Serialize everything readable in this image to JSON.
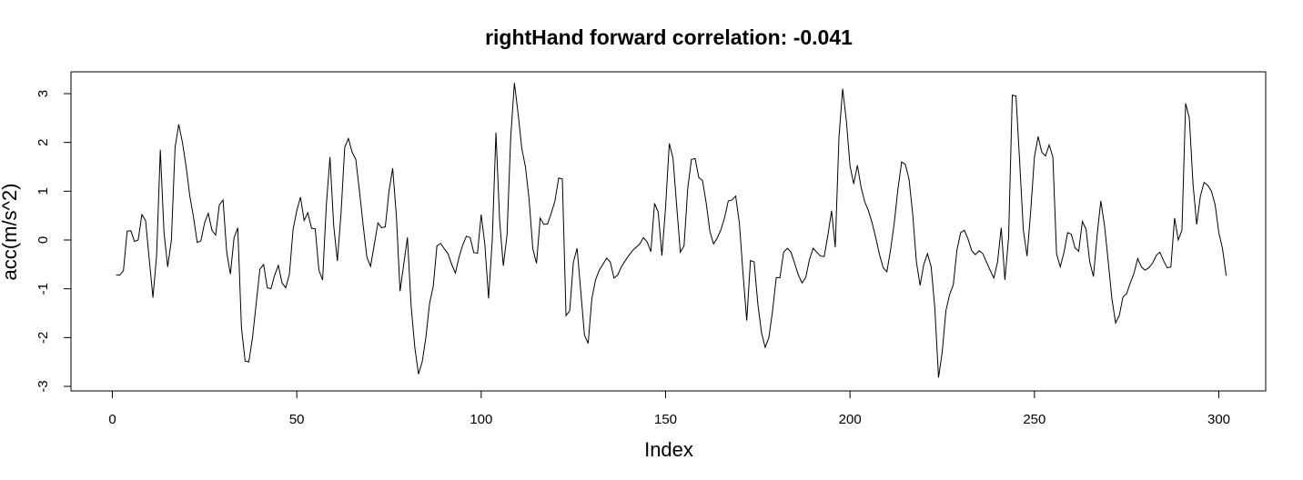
{
  "chart_data": {
    "type": "line",
    "title": "rightHand forward correlation: -0.041",
    "xlabel": "Index",
    "ylabel": "acc(m/s^2)",
    "xlim": [
      1,
      301
    ],
    "ylim": [
      -3,
      3.2
    ],
    "xticks": [
      0,
      50,
      100,
      150,
      200,
      250,
      300
    ],
    "yticks": [
      -3,
      -2,
      -1,
      0,
      1,
      2,
      3
    ],
    "grid": false,
    "line_color": "#000000",
    "series": [
      {
        "values": [
          -0.72,
          -0.72,
          -0.63,
          0.18,
          0.19,
          -0.03,
          0.0,
          0.52,
          0.4,
          -0.4,
          -1.18,
          -0.31,
          1.85,
          0.15,
          -0.55,
          0.0,
          1.9,
          2.37,
          2.0,
          1.5,
          0.9,
          0.47,
          -0.05,
          -0.02,
          0.35,
          0.55,
          0.2,
          0.1,
          0.72,
          0.82,
          -0.25,
          -0.7,
          0.05,
          0.25,
          -1.8,
          -2.48,
          -2.5,
          -2.0,
          -1.3,
          -0.6,
          -0.5,
          -0.98,
          -1.0,
          -0.72,
          -0.52,
          -0.88,
          -0.98,
          -0.7,
          0.22,
          0.6,
          0.88,
          0.4,
          0.56,
          0.24,
          0.23,
          -0.62,
          -0.82,
          0.7,
          1.7,
          0.3,
          -0.43,
          0.55,
          1.9,
          2.08,
          1.8,
          1.65,
          1.0,
          0.3,
          -0.35,
          -0.54,
          -0.1,
          0.35,
          0.25,
          0.27,
          1.0,
          1.47,
          0.5,
          -1.05,
          -0.5,
          0.05,
          -1.35,
          -2.2,
          -2.75,
          -2.5,
          -2.0,
          -1.3,
          -0.95,
          -0.12,
          -0.07,
          -0.18,
          -0.28,
          -0.5,
          -0.68,
          -0.35,
          -0.1,
          0.08,
          0.05,
          -0.26,
          -0.27,
          0.52,
          -0.1,
          -1.2,
          0.0,
          2.2,
          0.4,
          -0.53,
          0.1,
          2.1,
          3.22,
          2.6,
          1.88,
          1.5,
          0.82,
          -0.18,
          -0.48,
          0.45,
          0.32,
          0.33,
          0.55,
          0.8,
          1.27,
          1.25,
          -1.55,
          -1.45,
          -0.45,
          -0.17,
          -1.05,
          -1.95,
          -2.12,
          -1.2,
          -0.82,
          -0.62,
          -0.5,
          -0.37,
          -0.45,
          -0.78,
          -0.72,
          -0.55,
          -0.43,
          -0.32,
          -0.22,
          -0.15,
          -0.08,
          0.05,
          -0.04,
          -0.24,
          0.75,
          0.57,
          -0.32,
          0.68,
          1.98,
          1.68,
          0.7,
          -0.25,
          -0.12,
          1.05,
          1.65,
          1.67,
          1.28,
          1.22,
          0.76,
          0.18,
          -0.08,
          0.04,
          0.21,
          0.46,
          0.8,
          0.82,
          0.9,
          0.35,
          -0.7,
          -1.65,
          -0.42,
          -0.45,
          -1.3,
          -1.9,
          -2.2,
          -2.0,
          -1.45,
          -0.77,
          -0.77,
          -0.25,
          -0.17,
          -0.25,
          -0.48,
          -0.72,
          -0.88,
          -0.77,
          -0.4,
          -0.17,
          -0.25,
          -0.33,
          -0.34,
          0.1,
          0.6,
          -0.15,
          2.1,
          3.1,
          2.45,
          1.52,
          1.15,
          1.53,
          1.08,
          0.78,
          0.6,
          0.35,
          0.04,
          -0.3,
          -0.57,
          -0.65,
          -0.2,
          0.35,
          1.05,
          1.6,
          1.55,
          1.25,
          0.53,
          -0.45,
          -0.93,
          -0.5,
          -0.28,
          -0.55,
          -1.4,
          -2.82,
          -2.3,
          -1.45,
          -1.12,
          -0.92,
          -0.2,
          0.15,
          0.2,
          0.02,
          -0.22,
          -0.3,
          -0.22,
          -0.28,
          -0.45,
          -0.62,
          -0.78,
          -0.45,
          0.25,
          -0.82,
          0.05,
          2.97,
          2.95,
          1.6,
          0.2,
          -0.33,
          0.6,
          1.7,
          2.12,
          1.8,
          1.72,
          1.95,
          1.7,
          -0.28,
          -0.55,
          -0.26,
          0.15,
          0.12,
          -0.16,
          -0.23,
          0.38,
          0.22,
          -0.45,
          -0.75,
          0.1,
          0.8,
          0.3,
          -0.43,
          -1.2,
          -1.7,
          -1.55,
          -1.17,
          -1.1,
          -0.88,
          -0.68,
          -0.38,
          -0.55,
          -0.62,
          -0.57,
          -0.48,
          -0.32,
          -0.25,
          -0.42,
          -0.57,
          -0.55,
          0.45,
          0.0,
          0.2,
          2.8,
          2.5,
          1.15,
          0.32,
          0.9,
          1.18,
          1.12,
          1.0,
          0.72,
          0.15,
          -0.18,
          -0.73
        ]
      }
    ]
  }
}
